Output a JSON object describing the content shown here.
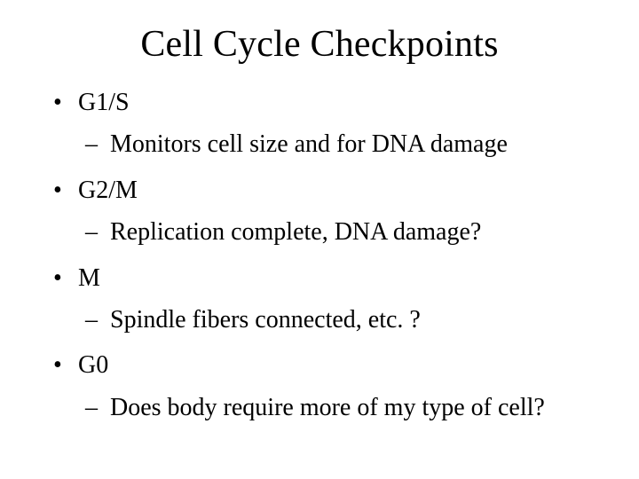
{
  "slide": {
    "title": "Cell Cycle Checkpoints",
    "title_fontsize": 42,
    "body_fontsize": 28,
    "background_color": "#ffffff",
    "text_color": "#000000",
    "font_family": "Times New Roman",
    "bullets": [
      {
        "level": 1,
        "text": "G1/S"
      },
      {
        "level": 2,
        "text": "Monitors cell size and for DNA damage"
      },
      {
        "level": 1,
        "text": "G2/M"
      },
      {
        "level": 2,
        "text": "Replication complete, DNA damage?"
      },
      {
        "level": 1,
        "text": "M"
      },
      {
        "level": 2,
        "text": "Spindle fibers connected, etc. ?"
      },
      {
        "level": 1,
        "text": "G0"
      },
      {
        "level": 2,
        "text": "Does body require more of my type of cell?"
      }
    ]
  }
}
